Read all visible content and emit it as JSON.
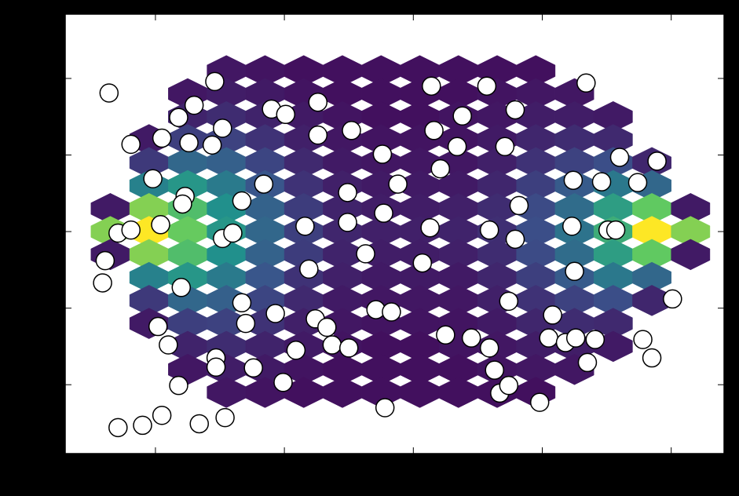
{
  "chart_data": {
    "type": "scatter",
    "xlim": [
      -2.7,
      2.41
    ],
    "ylim": [
      -2.9,
      2.84
    ],
    "xticks": [
      -2,
      -1,
      0,
      1,
      2
    ],
    "yticks": [
      -2,
      -1,
      0,
      1,
      2
    ],
    "hexbin": {
      "x_centers": [
        -2.35,
        -2.05,
        -1.75,
        -1.45,
        -1.15,
        -0.85,
        -0.55,
        -0.25,
        0.05,
        0.35,
        0.65,
        0.95,
        1.25,
        1.55,
        1.85,
        2.15
      ],
      "y_centers": [
        2.1,
        1.8,
        1.5,
        1.2,
        0.9,
        0.6,
        0.3,
        0,
        -0.3,
        -0.6,
        -0.9,
        -1.2,
        -1.5,
        -1.8,
        -2.1
      ],
      "counts": [
        [
          null,
          null,
          null,
          7,
          6,
          5,
          5,
          5,
          5,
          5,
          5,
          5,
          null,
          null,
          null,
          null
        ],
        [
          null,
          null,
          7,
          9,
          8,
          6,
          5,
          5,
          5,
          5,
          6,
          7,
          7,
          null,
          null,
          null
        ],
        [
          null,
          null,
          11,
          14,
          11,
          8,
          6,
          5,
          5,
          6,
          7,
          9,
          9,
          8,
          null,
          null
        ],
        [
          null,
          8,
          20,
          21,
          16,
          10,
          7,
          6,
          6,
          6,
          8,
          12,
          14,
          13,
          null,
          null
        ],
        [
          null,
          18,
          35,
          32,
          22,
          13,
          8,
          7,
          7,
          7,
          10,
          16,
          21,
          25,
          12,
          null
        ],
        [
          null,
          46,
          55,
          43,
          28,
          16,
          10,
          8,
          8,
          8,
          12,
          20,
          30,
          42,
          35,
          null
        ],
        [
          8,
          85,
          73,
          52,
          33,
          19,
          11,
          9,
          9,
          10,
          14,
          24,
          37,
          58,
          79,
          8
        ],
        [
          85,
          105,
          80,
          55,
          35,
          20,
          12,
          10,
          10,
          11,
          15,
          25,
          40,
          65,
          105,
          85
        ],
        [
          8,
          85,
          73,
          52,
          33,
          19,
          11,
          9,
          9,
          10,
          14,
          24,
          37,
          58,
          79,
          8
        ],
        [
          null,
          46,
          55,
          43,
          28,
          16,
          10,
          8,
          8,
          8,
          12,
          20,
          30,
          42,
          35,
          null
        ],
        [
          null,
          18,
          35,
          32,
          22,
          13,
          8,
          7,
          7,
          7,
          10,
          16,
          21,
          25,
          12,
          null
        ],
        [
          null,
          8,
          20,
          21,
          16,
          10,
          7,
          6,
          6,
          6,
          8,
          12,
          14,
          13,
          null,
          null
        ],
        [
          null,
          null,
          11,
          14,
          11,
          8,
          6,
          5,
          5,
          6,
          7,
          9,
          9,
          8,
          null,
          null
        ],
        [
          null,
          null,
          7,
          9,
          8,
          6,
          5,
          5,
          5,
          5,
          6,
          7,
          7,
          null,
          null,
          null
        ],
        [
          null,
          null,
          null,
          7,
          6,
          5,
          5,
          5,
          5,
          5,
          5,
          5,
          null,
          null,
          null,
          null
        ]
      ],
      "colormap": [
        "#440154",
        "#3b528b",
        "#21918c",
        "#5ec962",
        "#fde725"
      ]
    },
    "color": "#ffffff",
    "edgecolor": "#000000",
    "x": [
      -2.36,
      -2.19,
      -2.02,
      -2.29,
      -2.19,
      -2.39,
      -2.41,
      -1.96,
      -1.95,
      -1.82,
      -1.7,
      -1.54,
      -1.74,
      -1.56,
      -1.48,
      -1.77,
      -1.79,
      -1.48,
      -1.4,
      -1.8,
      -1.98,
      -1.9,
      -1.82,
      -1.53,
      -1.53,
      -2.29,
      -2.1,
      -1.95,
      -1.66,
      -1.46,
      -1.33,
      -1.16,
      -1.1,
      -0.99,
      -0.74,
      -0.74,
      -0.48,
      -0.24,
      -0.12,
      -0.51,
      -0.51,
      -0.23,
      -0.84,
      -0.37,
      -0.81,
      -1.33,
      -1.3,
      -1.07,
      -0.76,
      -0.67,
      -0.63,
      -0.5,
      -0.91,
      -1.24,
      -1.01,
      -0.22,
      -0.29,
      -0.17,
      0.07,
      0.13,
      0.21,
      0.34,
      0.16,
      0.38,
      0.14,
      0.57,
      0.79,
      0.71,
      0.82,
      0.79,
      0.59,
      0.74,
      0.25,
      0.45,
      0.59,
      0.63,
      0.67,
      0.74,
      0.98,
      1.08,
      1.05,
      1.18,
      1.26,
      1.41,
      1.35,
      1.25,
      1.23,
      1.51,
      1.57,
      1.24,
      1.46,
      1.6,
      1.89,
      1.74,
      1.34,
      2.01,
      1.78,
      1.85
    ],
    "values": [
      1.81,
      1.14,
      0.69,
      -0.02,
      0.02,
      -0.38,
      -0.67,
      0.09,
      1.22,
      1.49,
      1.65,
      1.96,
      1.16,
      1.13,
      1.35,
      0.46,
      0.36,
      -0.09,
      -0.02,
      -0.73,
      -1.24,
      -1.48,
      -2.01,
      -1.65,
      -1.77,
      -2.56,
      -2.53,
      -2.4,
      -2.51,
      -2.43,
      0.4,
      0.62,
      1.6,
      1.53,
      1.69,
      1.26,
      1.32,
      1.01,
      0.62,
      0.51,
      0.12,
      0.24,
      0.07,
      -0.29,
      -0.49,
      -0.93,
      -1.2,
      -1.07,
      -1.14,
      -1.25,
      -1.48,
      -1.52,
      -1.55,
      -1.78,
      -1.97,
      -2.3,
      -1.02,
      -1.05,
      -0.41,
      0.05,
      0.82,
      1.11,
      1.32,
      1.51,
      1.9,
      1.9,
      1.59,
      1.11,
      0.34,
      -0.1,
      0.02,
      -0.91,
      -1.35,
      -1.39,
      -1.52,
      -1.81,
      -2.11,
      -2.01,
      -2.23,
      -1.09,
      -1.39,
      -1.45,
      -1.39,
      -1.41,
      -1.71,
      -0.52,
      0.07,
      0.02,
      0.02,
      0.67,
      0.65,
      0.97,
      0.92,
      0.64,
      1.94,
      -0.88,
      -1.41,
      -1.65
    ]
  }
}
